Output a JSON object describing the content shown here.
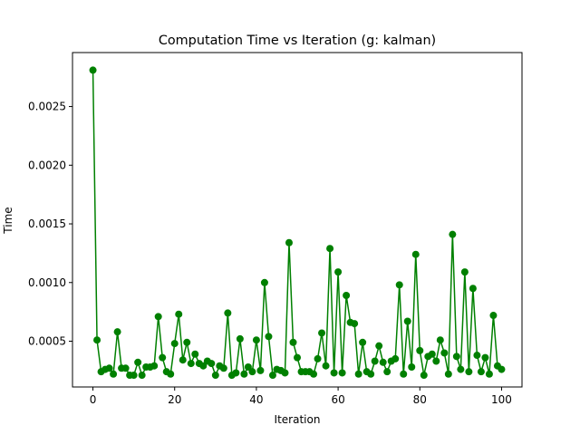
{
  "chart_data": {
    "type": "line",
    "title": "Computation Time vs Iteration (g: kalman)",
    "xlabel": "Iteration",
    "ylabel": "Time",
    "xlim": [
      -5,
      105
    ],
    "ylim": [
      0.00011,
      0.00296
    ],
    "grid": false,
    "marker": "circle",
    "line_color": "#008000",
    "x_ticks": [
      {
        "value": 0,
        "label": "0"
      },
      {
        "value": 20,
        "label": "20"
      },
      {
        "value": 40,
        "label": "40"
      },
      {
        "value": 60,
        "label": "60"
      },
      {
        "value": 80,
        "label": "80"
      },
      {
        "value": 100,
        "label": "100"
      }
    ],
    "y_ticks": [
      {
        "value": 0.0005,
        "label": "0.0005"
      },
      {
        "value": 0.001,
        "label": "0.0010"
      },
      {
        "value": 0.0015,
        "label": "0.0015"
      },
      {
        "value": 0.002,
        "label": "0.0020"
      },
      {
        "value": 0.0025,
        "label": "0.0025"
      }
    ],
    "series": [
      {
        "x": [
          0,
          1,
          2,
          3,
          4,
          5,
          6,
          7,
          8,
          9,
          10,
          11,
          12,
          13,
          14,
          15,
          16,
          17,
          18,
          19,
          20,
          21,
          22,
          23,
          24,
          25,
          26,
          27,
          28,
          29,
          30,
          31,
          32,
          33,
          34,
          35,
          36,
          37,
          38,
          39,
          40,
          41,
          42,
          43,
          44,
          45,
          46,
          47,
          48,
          49,
          50,
          51,
          52,
          53,
          54,
          55,
          56,
          57,
          58,
          59,
          60,
          61,
          62,
          63,
          64,
          65,
          66,
          67,
          68,
          69,
          70,
          71,
          72,
          73,
          74,
          75,
          76,
          77,
          78,
          79,
          80,
          81,
          82,
          83,
          84,
          85,
          86,
          87,
          88,
          89,
          90,
          91,
          92,
          93,
          94,
          95,
          96,
          97,
          98,
          99,
          100
        ],
        "y": [
          0.00281,
          0.00051,
          0.00024,
          0.00026,
          0.00027,
          0.00022,
          0.00058,
          0.00027,
          0.00027,
          0.00021,
          0.00021,
          0.00032,
          0.00021,
          0.00028,
          0.00028,
          0.00029,
          0.00071,
          0.00036,
          0.00024,
          0.00022,
          0.00048,
          0.00073,
          0.00034,
          0.00049,
          0.00031,
          0.00039,
          0.00031,
          0.00029,
          0.00033,
          0.00031,
          0.00021,
          0.00029,
          0.00027,
          0.00074,
          0.00021,
          0.00023,
          0.00052,
          0.00022,
          0.00028,
          0.00024,
          0.00051,
          0.00025,
          0.001,
          0.00054,
          0.00021,
          0.00026,
          0.00025,
          0.00023,
          0.00134,
          0.00049,
          0.00036,
          0.00024,
          0.00024,
          0.00024,
          0.00022,
          0.00035,
          0.00057,
          0.00029,
          0.00129,
          0.00023,
          0.00109,
          0.00023,
          0.00089,
          0.00066,
          0.00065,
          0.00022,
          0.00049,
          0.00024,
          0.00022,
          0.00033,
          0.00046,
          0.00032,
          0.00024,
          0.00033,
          0.00035,
          0.00098,
          0.00022,
          0.00067,
          0.00028,
          0.00124,
          0.00042,
          0.00021,
          0.00037,
          0.00039,
          0.00033,
          0.00051,
          0.0004,
          0.00022,
          0.00141,
          0.00037,
          0.00026,
          0.00109,
          0.00024,
          0.00095,
          0.00038,
          0.00024,
          0.00036,
          0.00022,
          0.00072,
          0.00029,
          0.00026
        ]
      }
    ]
  }
}
